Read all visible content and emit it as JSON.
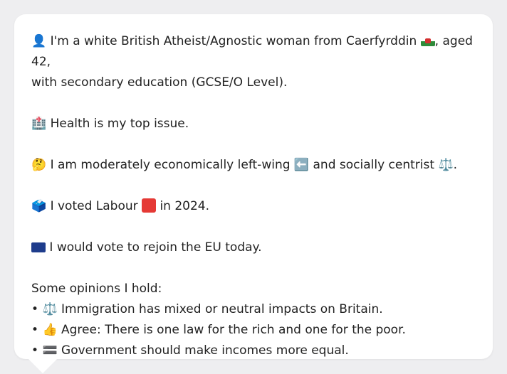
{
  "profile": {
    "identity_prefix": "I'm a white British Atheist/Agnostic woman from Caerfyrddin",
    "identity_suffix": ", aged 42,",
    "education_line": "with secondary education (GCSE/O Level).",
    "health_line": "Health is my top issue.",
    "economic_prefix": "I am moderately economically left-wing",
    "economic_mid": "and socially centrist",
    "economic_end": ".",
    "vote_prefix": "I voted Labour",
    "vote_suffix": "in 2024.",
    "eu_line": "I would vote to rejoin the EU today.",
    "opinions_heading": "Some opinions I hold:",
    "opinions": [
      {
        "icon": "⚖️",
        "icon_name": "scales-icon",
        "text": "Immigration has mixed or neutral impacts on Britain."
      },
      {
        "icon": "👍",
        "icon_name": "thumbs-up-icon",
        "text": "Agree: There is one law for the rich and one for the poor."
      },
      {
        "icon": "🟰",
        "icon_name": "equals-icon",
        "text": "Government should make incomes more equal."
      }
    ],
    "icons": {
      "person": "👤",
      "hospital": "🏥",
      "thinking": "🤔",
      "left_arrow": "⬅️",
      "scales": "⚖️",
      "ballot": "🗳️"
    }
  }
}
